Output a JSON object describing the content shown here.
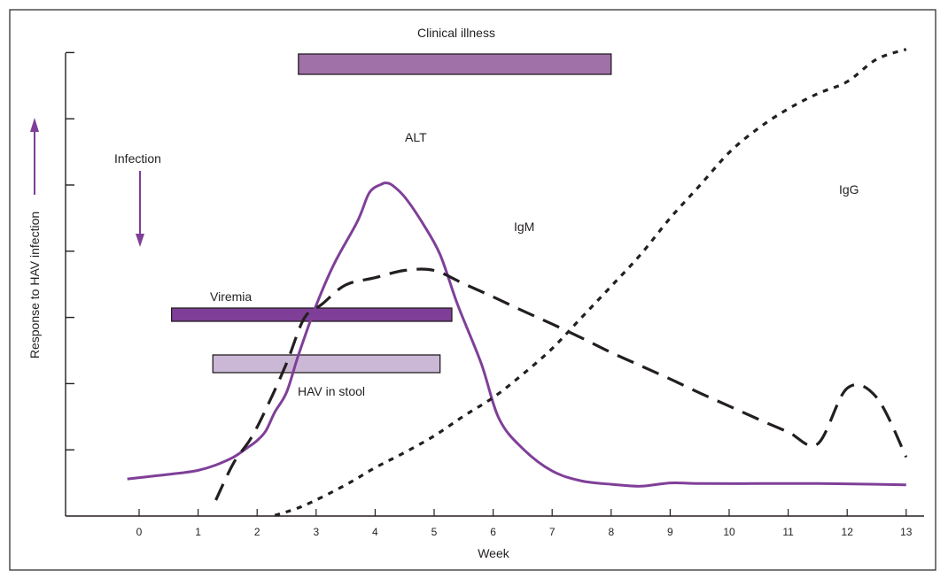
{
  "chart_data": {
    "type": "line",
    "xlabel": "Week",
    "ylabel": "Response to HAV infection",
    "xlim": [
      -0.85,
      13.2
    ],
    "ylim": [
      0,
      7
    ],
    "x_ticks": [
      0,
      1,
      2,
      3,
      4,
      5,
      6,
      7,
      8,
      9,
      10,
      11,
      12,
      13
    ],
    "y_tick_count": 7,
    "grid": false,
    "series": [
      {
        "name": "ALT",
        "style": "solid",
        "color": "#7f3f98",
        "points": [
          [
            -0.2,
            0.56
          ],
          [
            0.3,
            0.61
          ],
          [
            0.7,
            0.65
          ],
          [
            1.0,
            0.69
          ],
          [
            1.3,
            0.77
          ],
          [
            1.6,
            0.89
          ],
          [
            1.8,
            1.01
          ],
          [
            2.0,
            1.14
          ],
          [
            2.15,
            1.29
          ],
          [
            2.3,
            1.57
          ],
          [
            2.5,
            1.87
          ],
          [
            2.7,
            2.43
          ],
          [
            3.0,
            3.18
          ],
          [
            3.3,
            3.8
          ],
          [
            3.7,
            4.45
          ],
          [
            3.9,
            4.88
          ],
          [
            4.1,
            5.01
          ],
          [
            4.2,
            5.03
          ],
          [
            4.3,
            4.99
          ],
          [
            4.5,
            4.82
          ],
          [
            4.8,
            4.43
          ],
          [
            5.1,
            3.95
          ],
          [
            5.4,
            3.19
          ],
          [
            5.8,
            2.3
          ],
          [
            6.1,
            1.47
          ],
          [
            6.5,
            1.02
          ],
          [
            7.0,
            0.68
          ],
          [
            7.5,
            0.53
          ],
          [
            8.0,
            0.48
          ],
          [
            8.5,
            0.45
          ],
          [
            9.0,
            0.5
          ],
          [
            9.5,
            0.49
          ],
          [
            10.5,
            0.49
          ],
          [
            11.5,
            0.49
          ],
          [
            12.5,
            0.48
          ],
          [
            13.0,
            0.47
          ]
        ]
      },
      {
        "name": "IgM",
        "style": "dashed",
        "color": "#231f20",
        "points": [
          [
            1.3,
            0.24
          ],
          [
            1.6,
            0.8
          ],
          [
            1.9,
            1.18
          ],
          [
            2.2,
            1.71
          ],
          [
            2.5,
            2.31
          ],
          [
            2.8,
            2.99
          ],
          [
            3.1,
            3.2
          ],
          [
            3.5,
            3.49
          ],
          [
            4.0,
            3.6
          ],
          [
            4.5,
            3.71
          ],
          [
            5.0,
            3.71
          ],
          [
            5.5,
            3.51
          ],
          [
            6.0,
            3.31
          ],
          [
            6.5,
            3.1
          ],
          [
            7.0,
            2.9
          ],
          [
            7.5,
            2.69
          ],
          [
            8.0,
            2.47
          ],
          [
            8.5,
            2.27
          ],
          [
            9.0,
            2.07
          ],
          [
            9.5,
            1.86
          ],
          [
            10.0,
            1.66
          ],
          [
            10.5,
            1.46
          ],
          [
            11.0,
            1.27
          ],
          [
            11.5,
            1.09
          ],
          [
            12.0,
            1.93
          ],
          [
            12.5,
            1.79
          ],
          [
            13.0,
            0.89
          ]
        ]
      },
      {
        "name": "IgG",
        "style": "dotted",
        "color": "#231f20",
        "points": [
          [
            2.3,
            0.01
          ],
          [
            2.8,
            0.16
          ],
          [
            3.5,
            0.47
          ],
          [
            4.0,
            0.73
          ],
          [
            4.5,
            0.96
          ],
          [
            5.0,
            1.21
          ],
          [
            5.5,
            1.51
          ],
          [
            6.0,
            1.79
          ],
          [
            6.5,
            2.14
          ],
          [
            7.0,
            2.53
          ],
          [
            7.5,
            3.0
          ],
          [
            8.0,
            3.47
          ],
          [
            8.5,
            3.95
          ],
          [
            9.0,
            4.5
          ],
          [
            9.5,
            4.99
          ],
          [
            10.0,
            5.49
          ],
          [
            10.5,
            5.86
          ],
          [
            11.0,
            6.15
          ],
          [
            11.5,
            6.38
          ],
          [
            12.0,
            6.56
          ],
          [
            12.5,
            6.9
          ],
          [
            13.0,
            7.05
          ]
        ]
      }
    ],
    "series_labels": {
      "ALT": "ALT",
      "IgM": "IgM",
      "IgG": "IgG"
    },
    "bars": [
      {
        "label": "Clinical illness",
        "start": 2.7,
        "end": 8.0,
        "color": "#a070a9"
      },
      {
        "label": "Viremia",
        "start": 0.55,
        "end": 5.3,
        "color": "#7f3f98"
      },
      {
        "label": "HAV in stool",
        "start": 1.25,
        "end": 5.1,
        "color": "#cbb7d6"
      }
    ],
    "annotations": [
      {
        "label": "Infection",
        "x": 0,
        "marker": "down-arrow"
      }
    ]
  }
}
